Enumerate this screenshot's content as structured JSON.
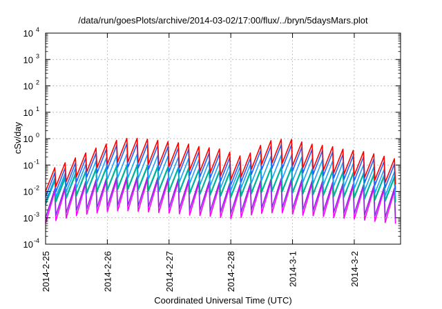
{
  "chart_data": {
    "type": "line",
    "title": "/data/run/goesPlots/archive/2014-03-02/17:00/flux/../bryn/5daysMars.plot",
    "xlabel": "Coordinated Universal Time (UTC)",
    "ylabel": "cSv/day",
    "y_scale": "log",
    "ylim": [
      0.0001,
      10000
    ],
    "y_ticks": [
      {
        "exp": "-4",
        "value": 0.0001
      },
      {
        "exp": "-3",
        "value": 0.001
      },
      {
        "exp": "-2",
        "value": 0.01
      },
      {
        "exp": "-1",
        "value": 0.1
      },
      {
        "exp": "0",
        "value": 1
      },
      {
        "exp": "1",
        "value": 10
      },
      {
        "exp": "2",
        "value": 100
      },
      {
        "exp": "3",
        "value": 1000
      },
      {
        "exp": "4",
        "value": 10000
      }
    ],
    "y_tick_base": "10",
    "xlim": [
      "2014-02-25",
      "2014-03-02T18:00"
    ],
    "x_ticks": [
      "2014-2-25",
      "2014-2-26",
      "2014-2-27",
      "2014-2-28",
      "2014-3-1",
      "2014-3-2"
    ],
    "x_tick_dates": [
      "2014-02-25",
      "2014-02-26",
      "2014-02-27",
      "2014-02-28",
      "2014-03-01",
      "2014-03-02"
    ],
    "grid": true,
    "legend": "none",
    "sawtooth_period_hours": 4,
    "series": [
      {
        "color": "#ff0000",
        "peak_log10": [
          -1.1,
          -0.9,
          -0.7,
          -0.5,
          -0.3,
          -0.15,
          0,
          0.02,
          0,
          -0.05,
          -0.1,
          -0.15,
          -0.2,
          -0.3,
          -0.35,
          -0.4,
          -0.55,
          -0.7,
          -0.45,
          -0.1,
          -0.05,
          0,
          -0.1,
          -0.2,
          -0.25,
          -0.3,
          -0.4,
          -0.45,
          -0.5,
          -0.6,
          -0.7,
          -0.8,
          -0.85
        ],
        "trough_offset": -0.9
      },
      {
        "color": "#2060ff",
        "peak_log10": [
          -1.3,
          -1.1,
          -0.9,
          -0.7,
          -0.5,
          -0.35,
          -0.2,
          -0.18,
          -0.2,
          -0.25,
          -0.3,
          -0.35,
          -0.4,
          -0.5,
          -0.55,
          -0.6,
          -0.75,
          -0.9,
          -0.65,
          -0.3,
          -0.25,
          -0.2,
          -0.3,
          -0.4,
          -0.45,
          -0.5,
          -0.6,
          -0.65,
          -0.7,
          -0.8,
          -0.9,
          -1.0,
          -1.05
        ],
        "trough_offset": -0.9
      },
      {
        "color": "#1a9fff",
        "peak_log10": [
          -1.5,
          -1.3,
          -1.1,
          -0.95,
          -0.8,
          -0.7,
          -0.6,
          -0.58,
          -0.6,
          -0.62,
          -0.65,
          -0.7,
          -0.75,
          -0.8,
          -0.85,
          -0.9,
          -1.0,
          -1.1,
          -0.9,
          -0.7,
          -0.65,
          -0.6,
          -0.68,
          -0.75,
          -0.8,
          -0.85,
          -0.9,
          -0.95,
          -1.0,
          -1.1,
          -1.2,
          -1.3,
          -1.35
        ],
        "trough_offset": -0.9
      },
      {
        "color": "#00b08a",
        "peak_log10": [
          -1.6,
          -1.5,
          -1.35,
          -1.25,
          -1.15,
          -1.1,
          -1.05,
          -1.03,
          -1.05,
          -1.08,
          -1.1,
          -1.12,
          -1.15,
          -1.2,
          -1.22,
          -1.25,
          -1.3,
          -1.35,
          -1.25,
          -1.15,
          -1.12,
          -1.1,
          -1.15,
          -1.2,
          -1.22,
          -1.25,
          -1.3,
          -1.32,
          -1.35,
          -1.4,
          -1.45,
          -1.5,
          -1.55
        ],
        "trough_offset": -0.9
      },
      {
        "color": "#00c0c0",
        "peak_log10": [
          -1.5,
          -1.4,
          -1.3,
          -1.2,
          -1.1,
          -1.05,
          -1.0,
          -0.98,
          -1.0,
          -1.02,
          -1.05,
          -1.08,
          -1.1,
          -1.15,
          -1.18,
          -1.2,
          -1.25,
          -1.3,
          -1.2,
          -1.1,
          -1.08,
          -1.05,
          -1.1,
          -1.15,
          -1.18,
          -1.2,
          -1.25,
          -1.28,
          -1.3,
          -1.35,
          -1.4,
          -1.45,
          -1.5
        ],
        "trough_offset": -0.9
      },
      {
        "color": "#8a2be2",
        "peak_log10": [
          -1.9,
          -1.8,
          -1.7,
          -1.6,
          -1.55,
          -1.5,
          -1.45,
          -1.43,
          -1.45,
          -1.47,
          -1.5,
          -1.52,
          -1.55,
          -1.6,
          -1.62,
          -1.65,
          -1.7,
          -1.75,
          -1.65,
          -1.55,
          -1.52,
          -1.5,
          -1.55,
          -1.6,
          -1.62,
          -1.65,
          -1.7,
          -1.72,
          -1.75,
          -1.8,
          -1.85,
          -1.9,
          -1.95
        ],
        "trough_offset": -1.1
      },
      {
        "color": "#ff00ff",
        "peak_log10": [
          -2.0,
          -1.9,
          -1.8,
          -1.7,
          -1.65,
          -1.6,
          -1.55,
          -1.53,
          -1.55,
          -1.57,
          -1.6,
          -1.62,
          -1.65,
          -1.7,
          -1.72,
          -1.75,
          -1.8,
          -1.85,
          -1.75,
          -1.65,
          -1.62,
          -1.6,
          -1.65,
          -1.7,
          -1.72,
          -1.75,
          -1.8,
          -1.82,
          -1.85,
          -1.9,
          -1.95,
          -2.0,
          -2.05
        ],
        "trough_offset": -1.2
      }
    ]
  }
}
